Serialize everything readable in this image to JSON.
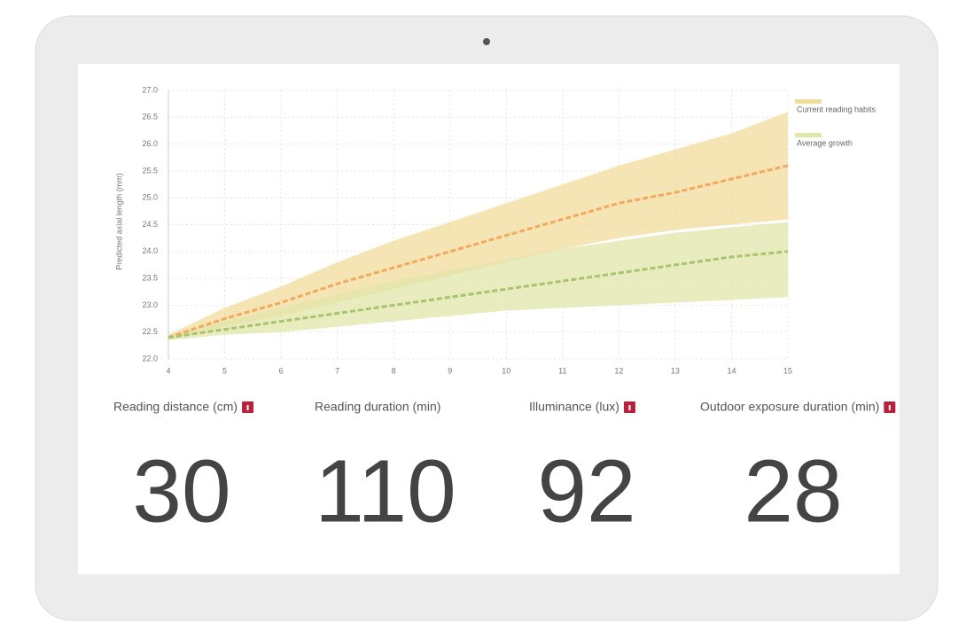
{
  "chart_data": {
    "type": "line",
    "ylabel": "Predicted axial length (mm)",
    "x": [
      4,
      5,
      6,
      7,
      8,
      9,
      10,
      11,
      12,
      13,
      14,
      15
    ],
    "xlim": [
      4,
      15
    ],
    "xticks": [
      4,
      5,
      6,
      7,
      8,
      9,
      10,
      11,
      12,
      13,
      14,
      15
    ],
    "ylim": [
      22,
      27
    ],
    "yticks": [
      {
        "value": 22,
        "label": "22.0"
      },
      {
        "value": 22.5,
        "label": "22.5"
      },
      {
        "value": 23,
        "label": "23.0"
      },
      {
        "value": 23.5,
        "label": "23.5"
      },
      {
        "value": 24,
        "label": "24.0"
      },
      {
        "value": 24.5,
        "label": "24.5"
      },
      {
        "value": 25,
        "label": "25.0"
      },
      {
        "value": 25.5,
        "label": "25.5"
      },
      {
        "value": 26,
        "label": "26.0"
      },
      {
        "value": 26.5,
        "label": "26.5"
      },
      {
        "value": 27,
        "label": "27.0"
      }
    ],
    "grid": true,
    "legend": "top-right",
    "series": [
      {
        "name": "Current reading habits",
        "color": "#f3a85e",
        "band_color": "#f1dc9c",
        "values": [
          22.4,
          22.75,
          23.05,
          23.4,
          23.7,
          24.0,
          24.3,
          24.6,
          24.9,
          25.1,
          25.35,
          25.6
        ],
        "upper": [
          22.45,
          22.95,
          23.35,
          23.8,
          24.2,
          24.55,
          24.9,
          25.25,
          25.6,
          25.9,
          26.2,
          26.6
        ],
        "lower": [
          22.35,
          22.6,
          22.8,
          23.05,
          23.3,
          23.55,
          23.8,
          24.05,
          24.25,
          24.4,
          24.5,
          24.6
        ]
      },
      {
        "name": "Average growth",
        "color": "#a9c46c",
        "band_color": "#e0e6aa",
        "values": [
          22.4,
          22.55,
          22.7,
          22.85,
          23.0,
          23.15,
          23.3,
          23.45,
          23.6,
          23.75,
          23.9,
          24.0
        ],
        "upper": [
          22.45,
          22.7,
          22.95,
          23.2,
          23.45,
          23.65,
          23.85,
          24.05,
          24.2,
          24.35,
          24.45,
          24.55
        ],
        "lower": [
          22.35,
          22.45,
          22.5,
          22.6,
          22.7,
          22.8,
          22.9,
          22.95,
          23.0,
          23.05,
          23.1,
          23.15
        ]
      }
    ]
  },
  "stats": [
    {
      "label": "Reading distance (cm)",
      "value": "30"
    },
    {
      "label": "Reading duration (min)",
      "value": "110"
    },
    {
      "label": "Illuminance (lux)",
      "value": "92"
    },
    {
      "label": "Outdoor exposure duration (min)",
      "value": "28"
    }
  ]
}
